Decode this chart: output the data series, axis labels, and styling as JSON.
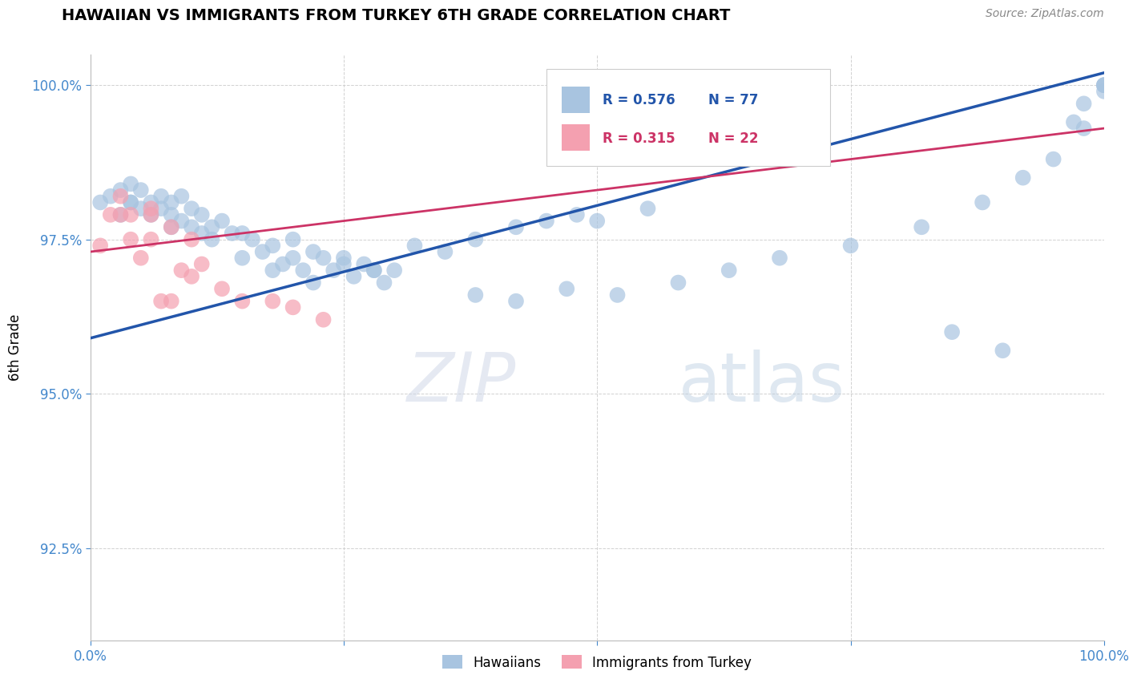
{
  "title": "HAWAIIAN VS IMMIGRANTS FROM TURKEY 6TH GRADE CORRELATION CHART",
  "source": "Source: ZipAtlas.com",
  "ylabel": "6th Grade",
  "xlim": [
    0.0,
    1.0
  ],
  "ylim": [
    0.91,
    1.005
  ],
  "yticks": [
    0.925,
    0.95,
    0.975,
    1.0
  ],
  "ytick_labels": [
    "92.5%",
    "95.0%",
    "97.5%",
    "100.0%"
  ],
  "xticks": [
    0.0,
    0.25,
    0.5,
    0.75,
    1.0
  ],
  "xtick_labels": [
    "0.0%",
    "",
    "",
    "",
    "100.0%"
  ],
  "blue_R": 0.576,
  "blue_N": 77,
  "pink_R": 0.315,
  "pink_N": 22,
  "blue_color": "#a8c4e0",
  "pink_color": "#f4a0b0",
  "blue_line_color": "#2255aa",
  "pink_line_color": "#cc3366",
  "legend_blue_label": "Hawaiians",
  "legend_pink_label": "Immigrants from Turkey",
  "tick_color": "#4488cc",
  "grid_color": "#cccccc",
  "blue_scatter_x": [
    0.01,
    0.02,
    0.03,
    0.03,
    0.04,
    0.04,
    0.04,
    0.05,
    0.05,
    0.06,
    0.06,
    0.07,
    0.07,
    0.08,
    0.08,
    0.08,
    0.09,
    0.09,
    0.1,
    0.1,
    0.11,
    0.11,
    0.12,
    0.12,
    0.13,
    0.14,
    0.15,
    0.16,
    0.17,
    0.18,
    0.19,
    0.2,
    0.21,
    0.22,
    0.23,
    0.24,
    0.25,
    0.26,
    0.27,
    0.28,
    0.29,
    0.3,
    0.15,
    0.18,
    0.2,
    0.22,
    0.25,
    0.28,
    0.32,
    0.35,
    0.38,
    0.42,
    0.45,
    0.48,
    0.5,
    0.55,
    0.38,
    0.42,
    0.47,
    0.52,
    0.58,
    0.63,
    0.68,
    0.75,
    0.82,
    0.88,
    0.92,
    0.95,
    0.98,
    1.0,
    0.85,
    0.9,
    0.97,
    0.98,
    1.0,
    1.0,
    1.0
  ],
  "blue_scatter_y": [
    0.981,
    0.982,
    0.979,
    0.983,
    0.981,
    0.984,
    0.981,
    0.98,
    0.983,
    0.981,
    0.979,
    0.982,
    0.98,
    0.979,
    0.981,
    0.977,
    0.978,
    0.982,
    0.98,
    0.977,
    0.979,
    0.976,
    0.977,
    0.975,
    0.978,
    0.976,
    0.972,
    0.975,
    0.973,
    0.97,
    0.971,
    0.972,
    0.97,
    0.968,
    0.972,
    0.97,
    0.971,
    0.969,
    0.971,
    0.97,
    0.968,
    0.97,
    0.976,
    0.974,
    0.975,
    0.973,
    0.972,
    0.97,
    0.974,
    0.973,
    0.975,
    0.977,
    0.978,
    0.979,
    0.978,
    0.98,
    0.966,
    0.965,
    0.967,
    0.966,
    0.968,
    0.97,
    0.972,
    0.974,
    0.977,
    0.981,
    0.985,
    0.988,
    0.993,
    1.0,
    0.96,
    0.957,
    0.994,
    0.997,
    0.999,
    1.0,
    1.0
  ],
  "pink_scatter_x": [
    0.01,
    0.02,
    0.03,
    0.03,
    0.04,
    0.04,
    0.05,
    0.06,
    0.06,
    0.07,
    0.08,
    0.09,
    0.1,
    0.11,
    0.13,
    0.15,
    0.18,
    0.2,
    0.23,
    0.06,
    0.08,
    0.1
  ],
  "pink_scatter_y": [
    0.974,
    0.979,
    0.979,
    0.982,
    0.975,
    0.979,
    0.972,
    0.975,
    0.979,
    0.965,
    0.965,
    0.97,
    0.969,
    0.971,
    0.967,
    0.965,
    0.965,
    0.964,
    0.962,
    0.98,
    0.977,
    0.975
  ],
  "blue_line_x0": 0.0,
  "blue_line_y0": 0.959,
  "blue_line_x1": 1.0,
  "blue_line_y1": 1.002,
  "pink_line_x0": 0.0,
  "pink_line_y0": 0.973,
  "pink_line_x1": 1.0,
  "pink_line_y1": 0.993
}
